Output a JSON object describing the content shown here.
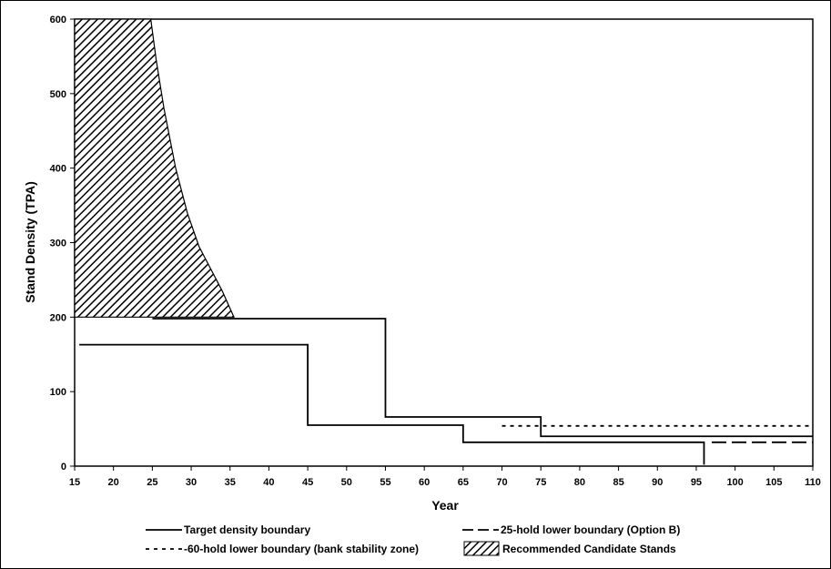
{
  "chart_data": {
    "type": "line",
    "xlabel": "Year",
    "ylabel": "Stand Density (TPA)",
    "xlim": [
      15,
      110
    ],
    "ylim": [
      0,
      600
    ],
    "x_ticks": [
      15,
      20,
      25,
      30,
      35,
      40,
      45,
      50,
      55,
      60,
      65,
      70,
      75,
      80,
      85,
      90,
      95,
      100,
      105,
      110
    ],
    "y_ticks": [
      0,
      100,
      200,
      300,
      400,
      500,
      600
    ],
    "grid": false,
    "legend_position": "bottom",
    "series": [
      {
        "name": "Target density boundary",
        "style": "solid",
        "segments": [
          [
            [
              15.6,
              163
            ],
            [
              45,
              163
            ],
            [
              45,
              55
            ],
            [
              65,
              55
            ],
            [
              65,
              32
            ],
            [
              96,
              32
            ],
            [
              96,
              2
            ]
          ],
          [
            [
              25,
              198
            ],
            [
              55,
              198
            ],
            [
              55,
              66
            ],
            [
              75,
              66
            ],
            [
              75,
              40
            ],
            [
              110,
              40
            ]
          ]
        ]
      },
      {
        "name": "25-hold lower boundary (Option B)",
        "style": "dashed",
        "segments": [
          [
            [
              97,
              32
            ],
            [
              110,
              32
            ]
          ]
        ]
      },
      {
        "name": "-60-hold lower boundary (bank stability zone)",
        "style": "dotted",
        "segments": [
          [
            [
              70,
              54
            ],
            [
              110,
              54
            ]
          ]
        ]
      },
      {
        "name": "Recommended Candidate Stands",
        "style": "hatched-area",
        "boundary": [
          [
            15,
            600
          ],
          [
            24.8,
            600
          ],
          [
            25.5,
            545
          ],
          [
            26.5,
            480
          ],
          [
            28,
            400
          ],
          [
            29.5,
            340
          ],
          [
            31,
            295
          ],
          [
            32.5,
            265
          ],
          [
            34,
            235
          ],
          [
            35.5,
            200
          ],
          [
            15,
            200
          ]
        ]
      }
    ]
  },
  "legend": {
    "target": "Target density boundary",
    "hold25": "25-hold lower boundary (Option B)",
    "hold60": "-60-hold lower boundary (bank stability zone)",
    "candidate": "Recommended Candidate Stands"
  }
}
